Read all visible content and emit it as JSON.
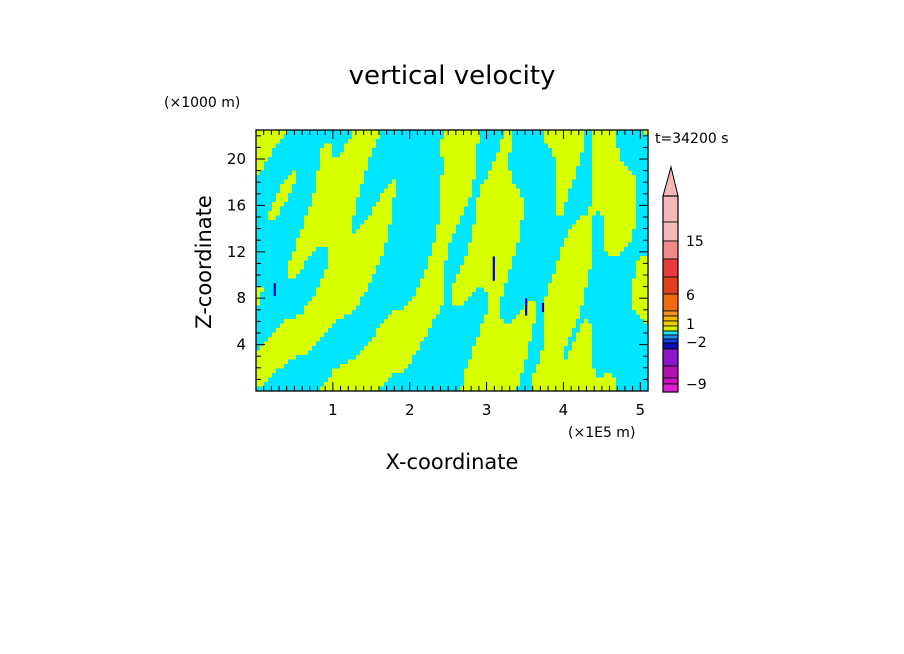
{
  "chart_data": {
    "type": "heatmap",
    "title": "vertical velocity",
    "xlabel": "X-coordinate",
    "ylabel": "Z-coordinate",
    "x_unit": "(×1E5 m)",
    "y_unit": "(×1000 m)",
    "time_label": "t=34200 s",
    "x_ticks": [
      "1",
      "2",
      "3",
      "4",
      "5"
    ],
    "y_ticks": [
      "4",
      "8",
      "12",
      "16",
      "20"
    ],
    "xlim": [
      0,
      5.1
    ],
    "ylim": [
      0,
      22.5
    ],
    "colorbar": {
      "labels": [
        "15",
        "6",
        "1",
        "−2",
        "−9"
      ],
      "colors_top_to_bottom": [
        "#f4b8b8",
        "#f4b8b8",
        "#f08a8a",
        "#e83c3c",
        "#e0421e",
        "#ee6a10",
        "#f59520",
        "#f5b400",
        "#e6d000",
        "#d8f000",
        "#22e0f0",
        "#2090f0",
        "#1040e0",
        "#0a10b0",
        "#8a18c8",
        "#b010b0",
        "#d010c0",
        "#e020d0"
      ]
    },
    "field_colors": {
      "positive": "#d8ff00",
      "negative": "#00e6ff",
      "strong_negative": "#0000c8"
    }
  }
}
